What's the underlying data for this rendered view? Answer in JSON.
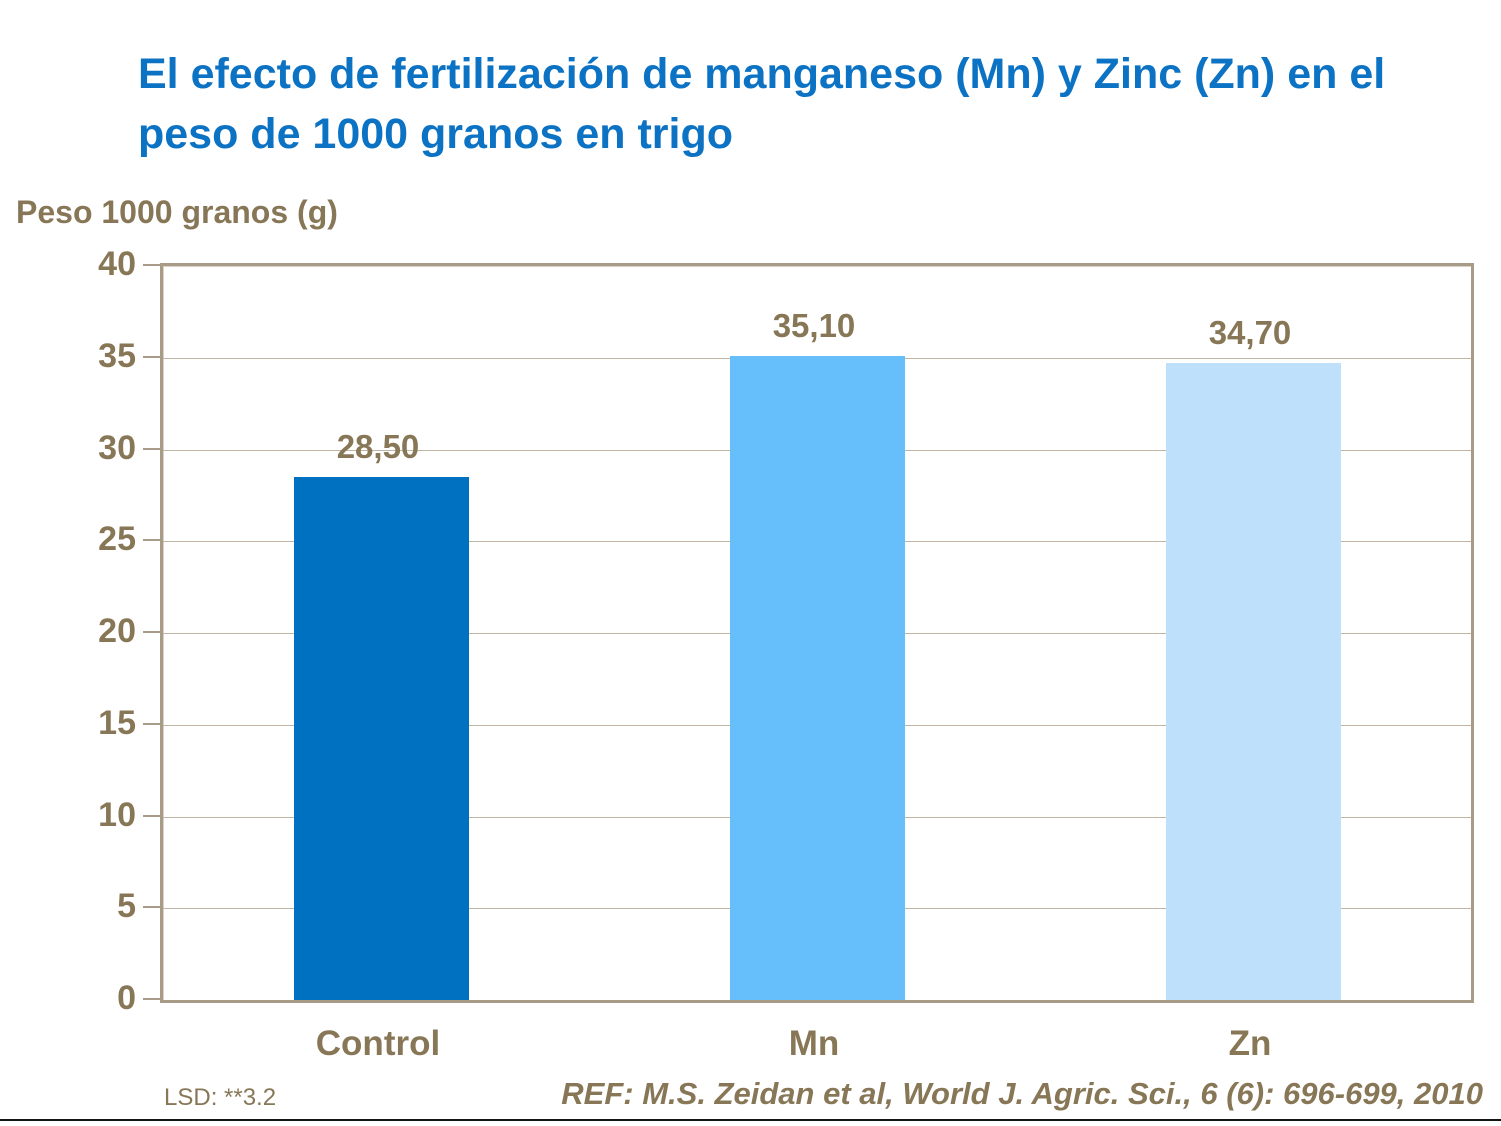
{
  "chart_data": {
    "type": "bar",
    "title": "El efecto de fertilización de manganeso (Mn) y Zinc (Zn) en el peso de 1000 granos en trigo",
    "ylabel": "Peso 1000 granos (g)",
    "xlabel": "",
    "categories": [
      "Control",
      "Mn",
      "Zn"
    ],
    "values": [
      28.5,
      35.1,
      34.7
    ],
    "value_labels": [
      "28,50",
      "35,10",
      "34,70"
    ],
    "bar_colors": [
      "#0070C0",
      "#66BEFB",
      "#BEE0FB"
    ],
    "ylim": [
      0,
      40
    ],
    "yticks": [
      40,
      35,
      30,
      25,
      20,
      15,
      10,
      5,
      0
    ],
    "ytick_labels": [
      "40",
      "35",
      "30",
      "25",
      "20",
      "15",
      "10",
      "5",
      "0"
    ],
    "grid": "horizontal",
    "legend": "none"
  },
  "annotations": {
    "lsd": "LSD: **3.2",
    "ref": "REF: M.S. Zeidan et al, World J. Agric. Sci., 6 (6): 696-699, 2010"
  },
  "colors": {
    "title_blue": "#0C73C4",
    "text_brown": "#877757",
    "grid": "#C0B5A3",
    "frame": "#A89C89",
    "bottom_rule": "#141414"
  }
}
